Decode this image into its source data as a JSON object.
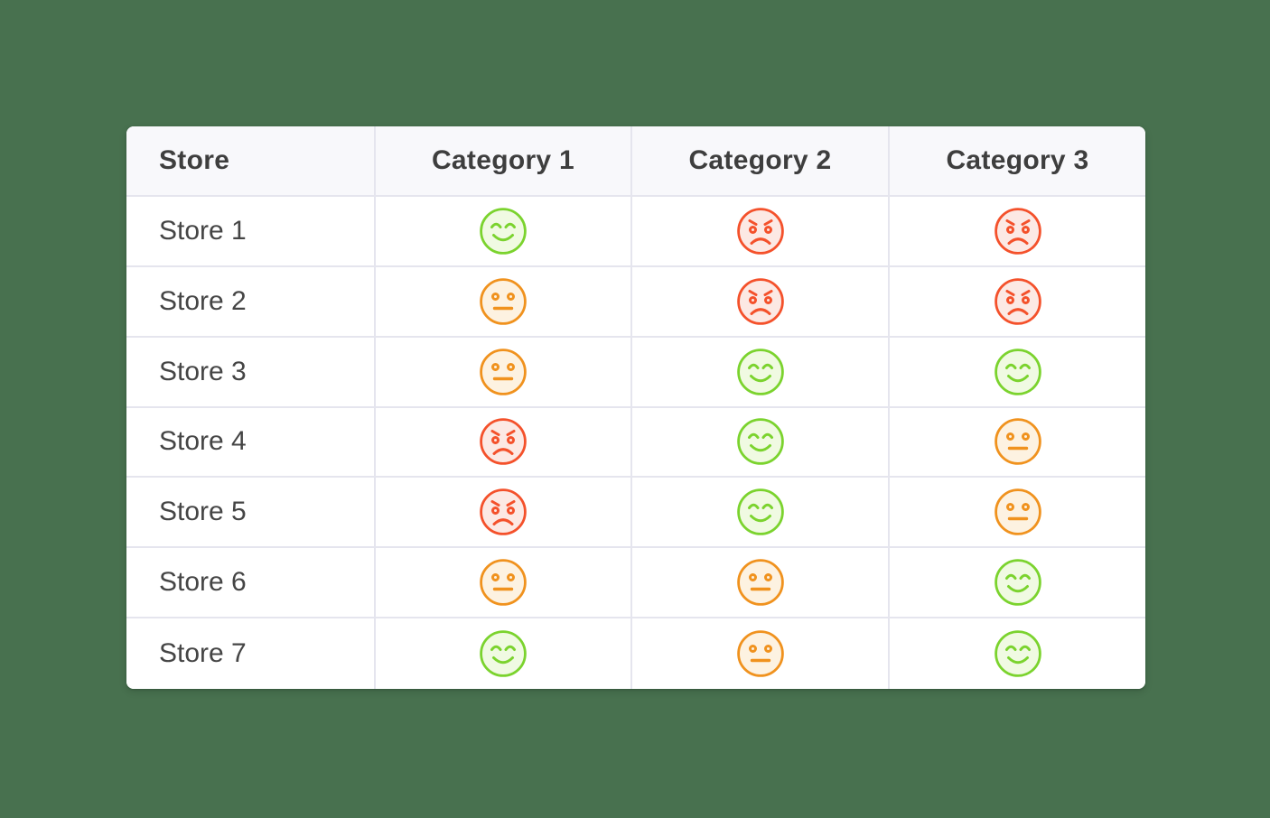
{
  "page": {
    "background_color": "#48714F",
    "card_color": "#FFFFFF"
  },
  "chart_data": {
    "type": "table",
    "columns": [
      "Store",
      "Category 1",
      "Category 2",
      "Category 3"
    ],
    "rows": [
      [
        "Store 1",
        "happy",
        "angry",
        "angry"
      ],
      [
        "Store 2",
        "neutral",
        "angry",
        "angry"
      ],
      [
        "Store 3",
        "neutral",
        "happy",
        "happy"
      ],
      [
        "Store 4",
        "angry",
        "happy",
        "neutral"
      ],
      [
        "Store 5",
        "angry",
        "happy",
        "neutral"
      ],
      [
        "Store 6",
        "neutral",
        "neutral",
        "happy"
      ],
      [
        "Store 7",
        "happy",
        "neutral",
        "happy"
      ]
    ],
    "value_encoding": "smiley icons: happy = green smiling face with closed arc eyes, neutral = orange face with dot eyes and straight mouth, angry = red face with angled brows, dot eyes and frown"
  },
  "rating_styles": {
    "happy": {
      "stroke": "#7BD32E",
      "fill": "#F0FAE2",
      "icon": "happy-face-icon"
    },
    "neutral": {
      "stroke": "#F0921E",
      "fill": "#FDF2E1",
      "icon": "neutral-face-icon"
    },
    "angry": {
      "stroke": "#F4512B",
      "fill": "#FCE9E4",
      "icon": "angry-face-icon"
    }
  },
  "table_style": {
    "header_background": "#F8F8FB",
    "grid_line_color": "#E5E5EE",
    "header_text_color": "#3E3E3E",
    "row_text_color": "#454545"
  }
}
